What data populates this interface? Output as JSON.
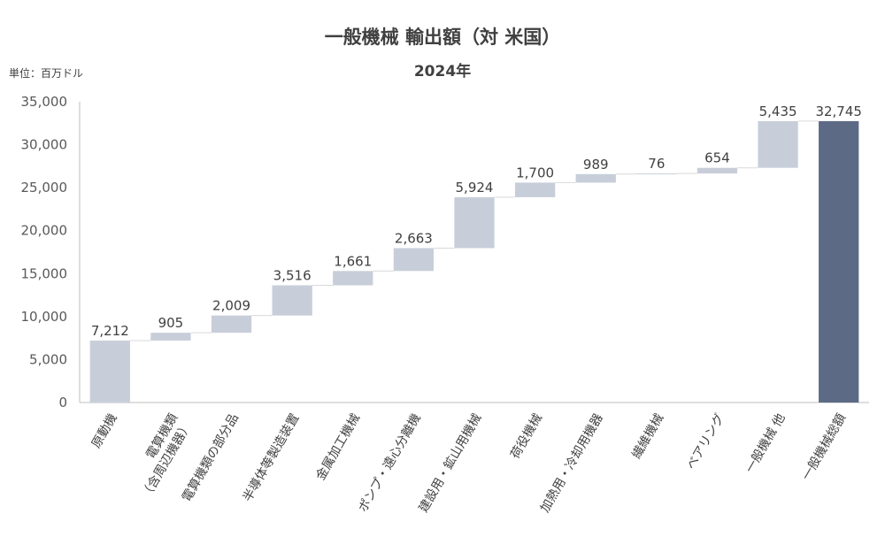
{
  "chart_data": {
    "type": "waterfall",
    "title": "一般機械 輸出額（対 米国）",
    "subtitle": "2024年",
    "unit_label": "単位：百万ドル",
    "categories": [
      "原動機",
      "電算機類\n（含周辺機器）",
      "電算機類の部分品",
      "半導体等製造装置",
      "金属加工機械",
      "ポンプ・遠心分離機",
      "建設用・鉱山用機械",
      "荷役機械",
      "加熱用・冷却用機器",
      "繊維機械",
      "ベアリング",
      "一般機械 他",
      "一般機械総額"
    ],
    "values": [
      7212,
      905,
      2009,
      3516,
      1661,
      2663,
      5924,
      1700,
      989,
      76,
      654,
      5435,
      32745
    ],
    "data_labels": [
      "7,212",
      "905",
      "2,009",
      "3,516",
      "1,661",
      "2,663",
      "5,924",
      "1,700",
      "989",
      "76",
      "654",
      "5,435",
      "32,745"
    ],
    "total_index": 12,
    "ylim": [
      0,
      35000
    ],
    "y_ticks": [
      0,
      5000,
      10000,
      15000,
      20000,
      25000,
      30000,
      35000
    ],
    "y_tick_labels": [
      "0",
      "5,000",
      "10,000",
      "15,000",
      "20,000",
      "25,000",
      "30,000",
      "35,000"
    ],
    "colors": {
      "increment": "#c8ced9",
      "total": "#5c6a85",
      "axis": "#bfbfbf"
    },
    "legend": "none",
    "grid": false
  }
}
